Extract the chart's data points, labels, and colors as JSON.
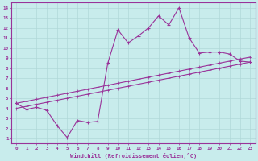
{
  "xlabel": "Windchill (Refroidissement éolien,°C)",
  "bg_color": "#c8ecec",
  "line_color": "#993399",
  "grid_color": "#b0d8d8",
  "x_ticks": [
    0,
    1,
    2,
    3,
    4,
    5,
    6,
    7,
    8,
    9,
    10,
    11,
    12,
    13,
    14,
    15,
    16,
    17,
    18,
    19,
    20,
    21,
    22,
    23
  ],
  "y_ticks": [
    1,
    2,
    3,
    4,
    5,
    6,
    7,
    8,
    9,
    10,
    11,
    12,
    13,
    14
  ],
  "xlim": [
    -0.5,
    23.5
  ],
  "ylim": [
    0.5,
    14.5
  ],
  "series1_x": [
    0,
    1,
    2,
    3,
    4,
    5,
    6,
    7,
    8,
    9,
    10,
    11,
    12,
    13,
    14,
    15,
    16,
    17,
    18,
    19,
    20,
    21,
    22,
    23
  ],
  "series1_y": [
    4.5,
    3.9,
    4.1,
    3.8,
    2.3,
    1.1,
    2.8,
    2.6,
    2.7,
    8.5,
    11.8,
    10.5,
    11.2,
    12.0,
    13.2,
    12.3,
    14.0,
    11.0,
    9.5,
    9.6,
    9.6,
    9.4,
    8.7,
    8.6
  ],
  "series2_x": [
    0,
    1,
    2,
    3,
    4,
    5,
    6,
    7,
    8,
    9,
    10,
    11,
    12,
    13,
    14,
    15,
    16,
    17,
    18,
    19,
    20,
    21,
    22,
    23
  ],
  "series2_y": [
    4.5,
    4.7,
    4.9,
    5.1,
    5.3,
    5.5,
    5.7,
    5.9,
    6.1,
    6.3,
    6.5,
    6.7,
    6.9,
    7.1,
    7.3,
    7.5,
    7.7,
    7.9,
    8.1,
    8.3,
    8.5,
    8.7,
    8.9,
    9.1
  ],
  "series3_x": [
    0,
    1,
    2,
    3,
    4,
    5,
    6,
    7,
    8,
    9,
    10,
    11,
    12,
    13,
    14,
    15,
    16,
    17,
    18,
    19,
    20,
    21,
    22,
    23
  ],
  "series3_y": [
    4.0,
    4.2,
    4.4,
    4.6,
    4.8,
    5.0,
    5.2,
    5.4,
    5.6,
    5.8,
    6.0,
    6.2,
    6.4,
    6.6,
    6.8,
    7.0,
    7.2,
    7.4,
    7.6,
    7.8,
    8.0,
    8.2,
    8.4,
    8.6
  ],
  "marker1": "+",
  "marker23": "+",
  "markersize1": 3.5,
  "markersize23": 3.0,
  "linewidth1": 0.8,
  "linewidth23": 0.8
}
